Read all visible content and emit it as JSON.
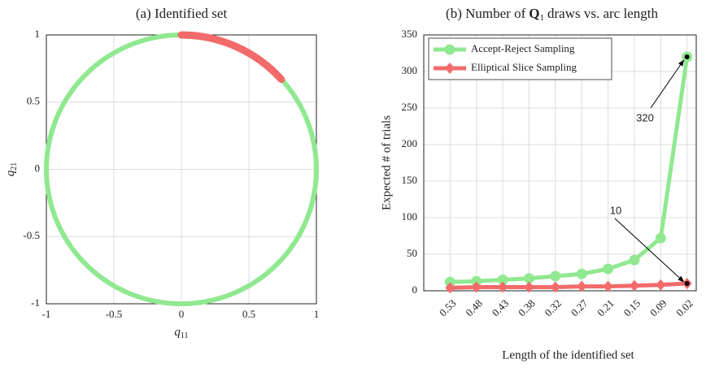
{
  "chart_data": [
    {
      "type": "circle",
      "title": "(a) Identified set",
      "xlabel": [
        "q",
        "11"
      ],
      "ylabel": [
        "q",
        "21"
      ],
      "radius": 1,
      "center": {
        "x": 0,
        "y": 0
      },
      "color": "#90e890",
      "highlight": {
        "x": [
          0,
          0.74
        ],
        "y": [
          1,
          0.67
        ],
        "color": "#f26a6a"
      },
      "xlim": [
        -1,
        1
      ],
      "ylim": [
        -1,
        1
      ],
      "xticks": [
        -1,
        -0.5,
        0,
        0.5,
        1
      ],
      "yticks": [
        -1,
        -0.5,
        0,
        0.5,
        1
      ],
      "grid": true
    },
    {
      "type": "line",
      "title": [
        "(b) Number of",
        "Q",
        "1",
        "draws vs. arc length"
      ],
      "xlabel": "Length of the identified set",
      "ylabel": "Expected # of trials",
      "categories": [
        "0.53",
        "0.48",
        "0.43",
        "0.38",
        "0.32",
        "0.27",
        "0.21",
        "0.15",
        "0.09",
        "0.02"
      ],
      "series": [
        {
          "name": "Accept-Reject Sampling",
          "color": "#90e890",
          "marker": "circle",
          "values": [
            12,
            13,
            15,
            17,
            20,
            23,
            30,
            42,
            72,
            320
          ]
        },
        {
          "name": "Elliptical Slice Sampling",
          "color": "#f26a6a",
          "marker": "diamond",
          "values": [
            4,
            5,
            5,
            5,
            5,
            6,
            6,
            7,
            8,
            10
          ]
        }
      ],
      "annotations": [
        {
          "text": "320",
          "series": 0,
          "category": "0.02"
        },
        {
          "text": "10",
          "series": 1,
          "category": "0.02"
        }
      ],
      "ylim": [
        0,
        350
      ],
      "yticks": [
        0,
        50,
        100,
        150,
        200,
        250,
        300,
        350
      ],
      "grid": true,
      "legend": "top-left"
    }
  ]
}
